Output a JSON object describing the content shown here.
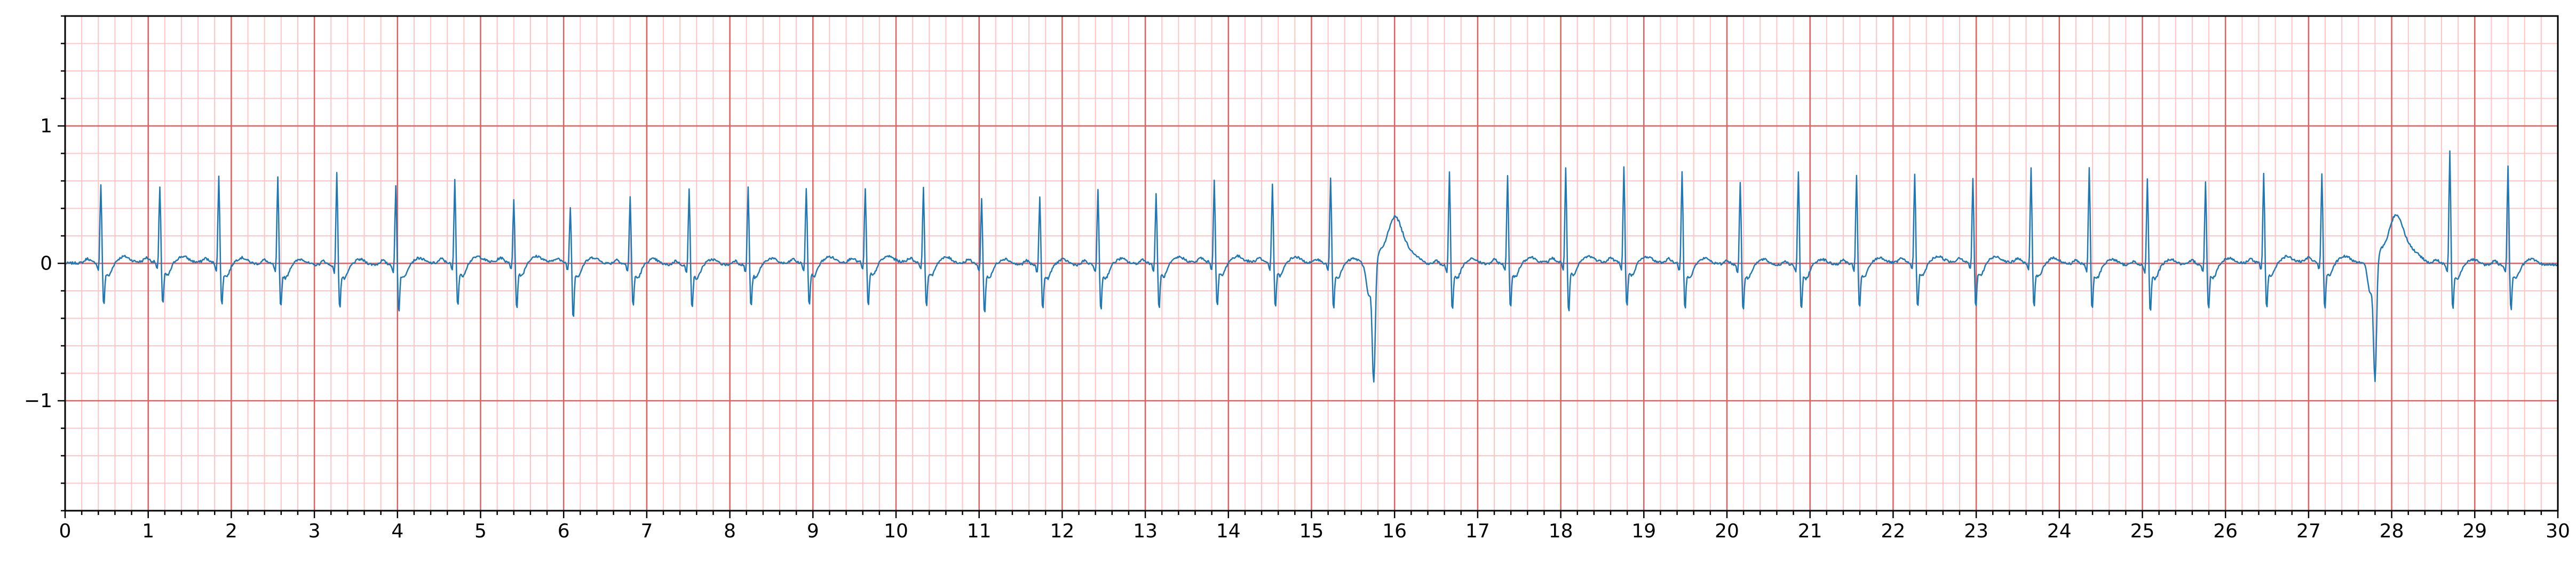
{
  "chart_data": {
    "type": "line",
    "title": "",
    "xlabel": "",
    "ylabel": "",
    "xlim": [
      0,
      30
    ],
    "ylim": [
      -1.8,
      1.8
    ],
    "x_ticks": [
      0,
      1,
      2,
      3,
      4,
      5,
      6,
      7,
      8,
      9,
      10,
      11,
      12,
      13,
      14,
      15,
      16,
      17,
      18,
      19,
      20,
      21,
      22,
      23,
      24,
      25,
      26,
      27,
      28,
      29,
      30
    ],
    "x_tick_labels": [
      "0",
      "1",
      "2",
      "3",
      "4",
      "5",
      "6",
      "7",
      "8",
      "9",
      "10",
      "11",
      "12",
      "13",
      "14",
      "15",
      "16",
      "17",
      "18",
      "19",
      "20",
      "21",
      "22",
      "23",
      "24",
      "25",
      "26",
      "27",
      "28",
      "29",
      "30"
    ],
    "y_ticks": [
      -1,
      0,
      1
    ],
    "y_tick_labels": [
      "−1",
      "0",
      "1"
    ],
    "grid": {
      "major_x": 1,
      "major_y": 1,
      "minor_x": 0.2,
      "minor_y": 0.2
    },
    "colors": {
      "line": "#1f77b4",
      "grid_major": "#e06060",
      "grid_minor": "#ffc4c4",
      "axes": "#000000"
    },
    "series": [
      {
        "name": "",
        "sample_rate_hz": 100,
        "beats": [
          {
            "t": 0.43,
            "r": 0.58,
            "s": -0.28,
            "kind": "normal"
          },
          {
            "t": 1.14,
            "r": 0.56,
            "s": -0.28,
            "kind": "normal"
          },
          {
            "t": 1.85,
            "r": 0.64,
            "s": -0.28,
            "kind": "normal"
          },
          {
            "t": 2.56,
            "r": 0.64,
            "s": -0.28,
            "kind": "normal"
          },
          {
            "t": 3.27,
            "r": 0.68,
            "s": -0.28,
            "kind": "normal"
          },
          {
            "t": 3.98,
            "r": 0.58,
            "s": -0.32,
            "kind": "normal"
          },
          {
            "t": 4.69,
            "r": 0.61,
            "s": -0.28,
            "kind": "normal"
          },
          {
            "t": 5.4,
            "r": 0.47,
            "s": -0.32,
            "kind": "normal"
          },
          {
            "t": 6.08,
            "r": 0.41,
            "s": -0.38,
            "kind": "normal"
          },
          {
            "t": 6.8,
            "r": 0.5,
            "s": -0.28,
            "kind": "normal"
          },
          {
            "t": 7.51,
            "r": 0.56,
            "s": -0.28,
            "kind": "normal"
          },
          {
            "t": 8.22,
            "r": 0.57,
            "s": -0.28,
            "kind": "normal"
          },
          {
            "t": 8.92,
            "r": 0.56,
            "s": -0.28,
            "kind": "normal"
          },
          {
            "t": 9.63,
            "r": 0.55,
            "s": -0.3,
            "kind": "normal"
          },
          {
            "t": 10.33,
            "r": 0.56,
            "s": -0.3,
            "kind": "normal"
          },
          {
            "t": 11.03,
            "r": 0.49,
            "s": -0.34,
            "kind": "normal"
          },
          {
            "t": 11.73,
            "r": 0.51,
            "s": -0.3,
            "kind": "normal"
          },
          {
            "t": 12.43,
            "r": 0.55,
            "s": -0.3,
            "kind": "normal"
          },
          {
            "t": 13.13,
            "r": 0.51,
            "s": -0.3,
            "kind": "normal"
          },
          {
            "t": 13.83,
            "r": 0.61,
            "s": -0.3,
            "kind": "normal"
          },
          {
            "t": 14.53,
            "r": 0.57,
            "s": -0.3,
            "kind": "normal"
          },
          {
            "t": 15.23,
            "r": 0.64,
            "s": -0.3,
            "kind": "normal"
          },
          {
            "t": 15.75,
            "r": 0.0,
            "s": -0.85,
            "kind": "pvc"
          },
          {
            "t": 16.66,
            "r": 0.69,
            "s": -0.3,
            "kind": "normal"
          },
          {
            "t": 17.36,
            "r": 0.66,
            "s": -0.3,
            "kind": "normal"
          },
          {
            "t": 18.06,
            "r": 0.69,
            "s": -0.34,
            "kind": "normal"
          },
          {
            "t": 18.76,
            "r": 0.7,
            "s": -0.3,
            "kind": "normal"
          },
          {
            "t": 19.46,
            "r": 0.68,
            "s": -0.3,
            "kind": "normal"
          },
          {
            "t": 20.16,
            "r": 0.61,
            "s": -0.3,
            "kind": "normal"
          },
          {
            "t": 20.86,
            "r": 0.69,
            "s": -0.3,
            "kind": "normal"
          },
          {
            "t": 21.56,
            "r": 0.66,
            "s": -0.3,
            "kind": "normal"
          },
          {
            "t": 22.26,
            "r": 0.66,
            "s": -0.3,
            "kind": "normal"
          },
          {
            "t": 22.96,
            "r": 0.61,
            "s": -0.3,
            "kind": "normal"
          },
          {
            "t": 23.66,
            "r": 0.7,
            "s": -0.3,
            "kind": "normal"
          },
          {
            "t": 24.36,
            "r": 0.72,
            "s": -0.3,
            "kind": "normal"
          },
          {
            "t": 25.06,
            "r": 0.63,
            "s": -0.32,
            "kind": "normal"
          },
          {
            "t": 25.76,
            "r": 0.61,
            "s": -0.3,
            "kind": "normal"
          },
          {
            "t": 26.46,
            "r": 0.66,
            "s": -0.3,
            "kind": "normal"
          },
          {
            "t": 27.16,
            "r": 0.66,
            "s": -0.32,
            "kind": "normal"
          },
          {
            "t": 27.8,
            "r": 0.0,
            "s": -0.86,
            "kind": "pvc"
          },
          {
            "t": 28.7,
            "r": 0.83,
            "s": -0.3,
            "kind": "normal"
          },
          {
            "t": 29.4,
            "r": 0.74,
            "s": -0.3,
            "kind": "normal"
          }
        ]
      }
    ]
  }
}
